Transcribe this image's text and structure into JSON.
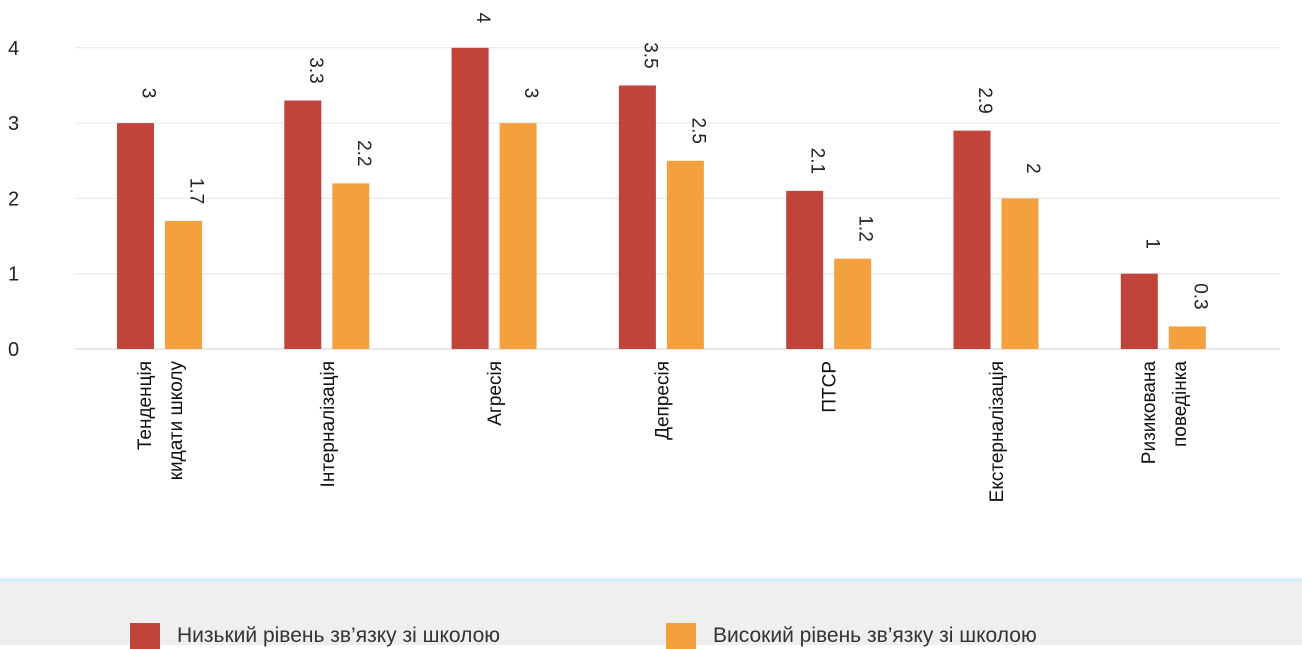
{
  "chart_data": {
    "type": "bar",
    "categories": [
      [
        "Тенденція",
        "кидати школу"
      ],
      [
        "Інтерналізація"
      ],
      [
        "Агресія"
      ],
      [
        "Депресія"
      ],
      [
        "ПТСР"
      ],
      [
        "Екстерналізація"
      ],
      [
        "Ризикована",
        "поведінка"
      ]
    ],
    "series": [
      {
        "name": "Низький рівень зв’язку зі школою",
        "color": "#c0443a",
        "values": [
          3,
          3.3,
          4,
          3.5,
          2.1,
          2.9,
          1
        ]
      },
      {
        "name": "Високий рівень зв’язку зі школою",
        "color": "#f4a03f",
        "values": [
          1.7,
          2.2,
          3,
          2.5,
          1.2,
          2,
          0.3
        ]
      }
    ],
    "yticks": [
      0,
      1,
      2,
      3,
      4
    ],
    "ylim": [
      0,
      4
    ],
    "grid": true,
    "legend_position": "bottom"
  }
}
